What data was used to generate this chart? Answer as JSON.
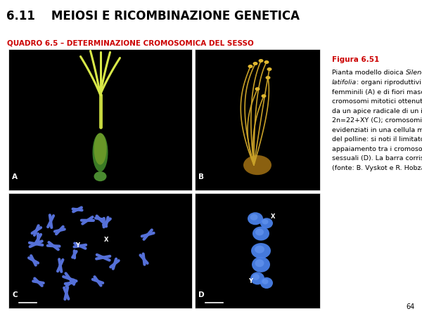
{
  "header_bg": "#cce4f7",
  "header_text": "6.11    MEIOSI E RICOMBINAZIONE GENETICA",
  "header_text_color": "#000000",
  "header_fontsize": 12,
  "subheader_text": "QUADRO 6.5 – DETERMINAZIONE CROMOSOMICA DEL SESSO",
  "subheader_color": "#cc0000",
  "subheader_fontsize": 7.5,
  "fig_title": "Figura 6.51",
  "fig_title_color": "#cc0000",
  "fig_title_fontsize": 7.5,
  "caption_fontsize": 6.8,
  "caption_color": "#000000",
  "page_number": "64",
  "page_number_fontsize": 7,
  "label_color": "#ffffff",
  "label_fontsize": 7.5,
  "bg_color": "#ffffff",
  "image_bg": "#000000"
}
